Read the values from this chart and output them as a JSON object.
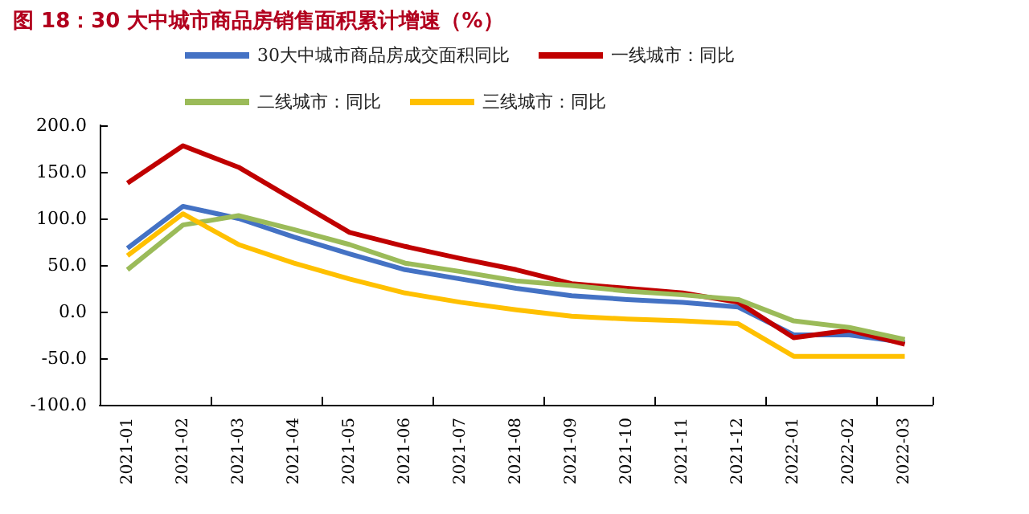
{
  "chart_data": {
    "type": "line",
    "title": "图 18：30 大中城市商品房销售面积累计增速（%）",
    "categories": [
      "2021-01",
      "2021-02",
      "2021-03",
      "2021-04",
      "2021-05",
      "2021-06",
      "2021-07",
      "2021-08",
      "2021-09",
      "2021-10",
      "2021-11",
      "2021-12",
      "2022-01",
      "2022-02",
      "2022-03"
    ],
    "series": [
      {
        "name": "30大中城市商品房成交面积同比",
        "color": "#4472c4",
        "values": [
          68,
          113,
          100,
          80,
          62,
          45,
          35,
          25,
          17,
          13,
          10,
          5,
          -25,
          -25,
          -33
        ]
      },
      {
        "name": "一线城市：同比",
        "color": "#c00000",
        "values": [
          138,
          178,
          155,
          120,
          85,
          70,
          57,
          45,
          30,
          25,
          20,
          10,
          -28,
          -20,
          -35
        ]
      },
      {
        "name": "二线城市：同比",
        "color": "#9bbb59",
        "values": [
          45,
          93,
          103,
          88,
          72,
          52,
          43,
          33,
          28,
          22,
          18,
          13,
          -10,
          -17,
          -30
        ]
      },
      {
        "name": "三线城市：同比",
        "color": "#ffc000",
        "values": [
          60,
          105,
          72,
          52,
          35,
          20,
          10,
          2,
          -5,
          -8,
          -10,
          -13,
          -48,
          -48,
          -48
        ]
      }
    ],
    "ylim": [
      -100,
      200
    ],
    "yticks": [
      {
        "value": -100,
        "label": "-100.0"
      },
      {
        "value": -50,
        "label": "-50.0"
      },
      {
        "value": 0,
        "label": "0.0"
      },
      {
        "value": 50,
        "label": "50.0"
      },
      {
        "value": 100,
        "label": "100.0"
      },
      {
        "value": 150,
        "label": "150.0"
      },
      {
        "value": 200,
        "label": "200.0"
      }
    ],
    "grid": false,
    "legend": "top",
    "marker": "none",
    "line_style": "solid"
  }
}
